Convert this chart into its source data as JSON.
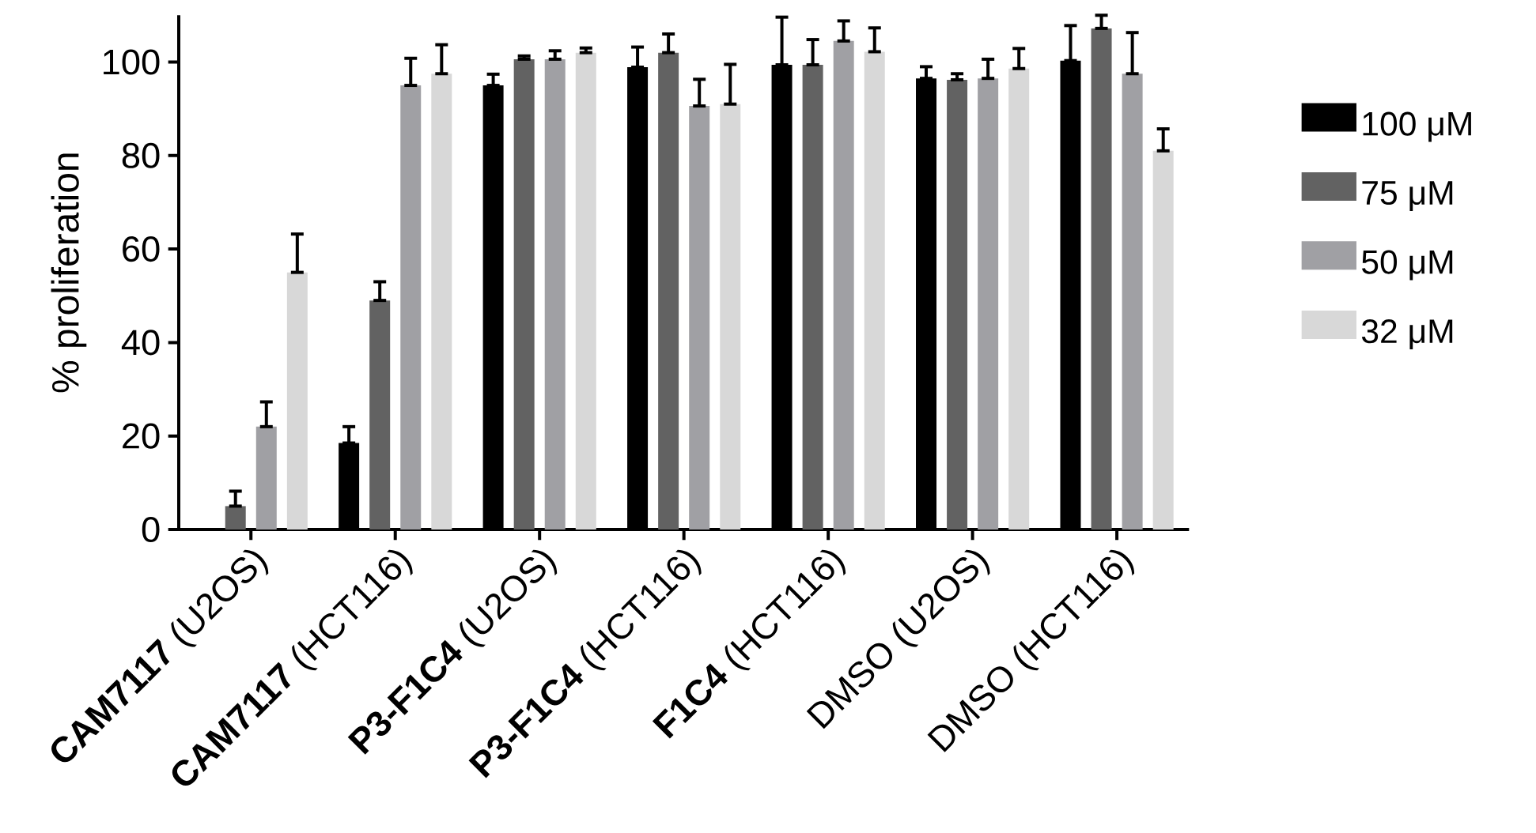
{
  "chart_data": {
    "type": "bar",
    "ylabel": "% proliferation",
    "categories": [
      "**CAM7117** (U2OS)",
      "**CAM7117** (HCT116)",
      "**P3-F1C4** (U2OS)",
      "**P3-F1C4** (HCT116)",
      "**F1C4** (HCT116)",
      "DMSO (U2OS)",
      "DMSO (HCT116)"
    ],
    "series": [
      {
        "name": "100 μM",
        "color": "#000000",
        "values": [
          0,
          18.5,
          95,
          98.9,
          99.4,
          96.5,
          100.3
        ],
        "errors": [
          null,
          [
            18.5,
            22
          ],
          [
            95,
            97.4
          ],
          [
            98.9,
            103.2
          ],
          [
            99.4,
            109.6
          ],
          [
            96.5,
            99
          ],
          [
            100.3,
            107.8
          ]
        ]
      },
      {
        "name": "75 μM",
        "color": "#626262",
        "values": [
          5,
          49,
          100.6,
          102,
          99.4,
          96.2,
          107.2
        ],
        "errors": [
          [
            5,
            8.2
          ],
          [
            49,
            53
          ],
          [
            100.6,
            101.3
          ],
          [
            102,
            106
          ],
          [
            99.4,
            104.8
          ],
          [
            96.2,
            97.5
          ],
          [
            107.2,
            110
          ]
        ]
      },
      {
        "name": "50 μM",
        "color": "#a0a0a4",
        "values": [
          22,
          95,
          100.6,
          90.6,
          104.5,
          96.5,
          97.5
        ],
        "errors": [
          [
            22,
            27.3
          ],
          [
            95,
            100.8
          ],
          [
            100.6,
            102.4
          ],
          [
            90.6,
            96.3
          ],
          [
            104.5,
            108.8
          ],
          [
            96.5,
            100.6
          ],
          [
            97.5,
            106.3
          ]
        ]
      },
      {
        "name": "32 μM",
        "color": "#d8d8d8",
        "values": [
          55,
          97.5,
          102,
          91,
          102.2,
          98.6,
          81
        ],
        "errors": [
          [
            55,
            63.2
          ],
          [
            97.5,
            103.7
          ],
          [
            102,
            103
          ],
          [
            91,
            99.5
          ],
          [
            102.2,
            107.3
          ],
          [
            98.6,
            102.9
          ],
          [
            81,
            85.7
          ]
        ]
      }
    ],
    "ylim": [
      0,
      110
    ],
    "yticks": [
      0,
      20,
      40,
      60,
      80,
      100
    ],
    "legend": "right"
  }
}
